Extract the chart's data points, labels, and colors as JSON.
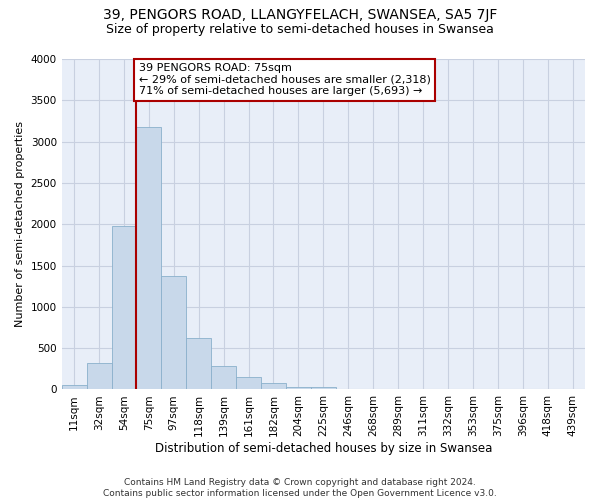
{
  "title": "39, PENGORS ROAD, LLANGYFELACH, SWANSEA, SA5 7JF",
  "subtitle": "Size of property relative to semi-detached houses in Swansea",
  "xlabel": "Distribution of semi-detached houses by size in Swansea",
  "ylabel": "Number of semi-detached properties",
  "categories": [
    "11sqm",
    "32sqm",
    "54sqm",
    "75sqm",
    "97sqm",
    "118sqm",
    "139sqm",
    "161sqm",
    "182sqm",
    "204sqm",
    "225sqm",
    "246sqm",
    "268sqm",
    "289sqm",
    "311sqm",
    "332sqm",
    "353sqm",
    "375sqm",
    "396sqm",
    "418sqm",
    "439sqm"
  ],
  "values": [
    50,
    320,
    1975,
    3175,
    1375,
    625,
    280,
    150,
    75,
    30,
    25,
    10,
    5,
    5,
    2,
    2,
    1,
    1,
    1,
    1,
    5
  ],
  "bar_color": "#c8d8ea",
  "bar_edge_color": "#8ab0cc",
  "vline_color": "#aa0000",
  "annotation_line1": "39 PENGORS ROAD: 75sqm",
  "annotation_line2": "← 29% of semi-detached houses are smaller (2,318)",
  "annotation_line3": "71% of semi-detached houses are larger (5,693) →",
  "annotation_box_color": "white",
  "annotation_box_edge": "#aa0000",
  "ylim": [
    0,
    4000
  ],
  "yticks": [
    0,
    500,
    1000,
    1500,
    2000,
    2500,
    3000,
    3500,
    4000
  ],
  "background_color": "#e8eef8",
  "grid_color": "#c8d0e0",
  "footer": "Contains HM Land Registry data © Crown copyright and database right 2024.\nContains public sector information licensed under the Open Government Licence v3.0.",
  "title_fontsize": 10,
  "subtitle_fontsize": 9,
  "xlabel_fontsize": 8.5,
  "ylabel_fontsize": 8,
  "tick_fontsize": 7.5,
  "annotation_fontsize": 8,
  "footer_fontsize": 6.5
}
